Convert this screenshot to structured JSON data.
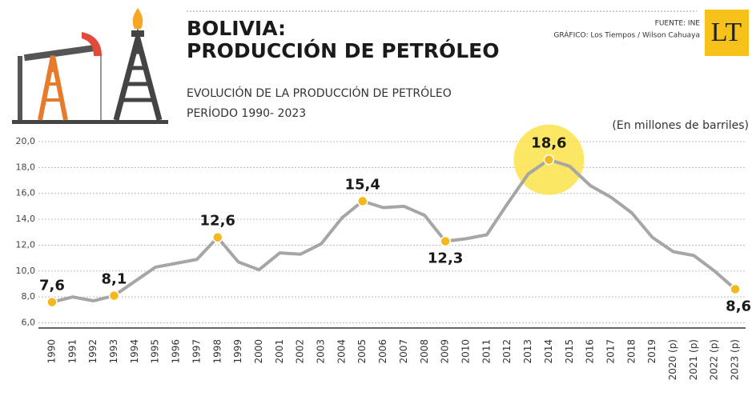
{
  "chart_data": {
    "type": "line",
    "title": [
      "BOLIVIA:",
      "PRODUCCIÓN DE PETRÓLEO"
    ],
    "subtitle": [
      "EVOLUCIÓN DE LA PRODUCCIÓN DE PETRÓLEO",
      "PERÍODO 1990- 2023"
    ],
    "unit": "(En millones de barriles)",
    "source": "FUENTE: INE",
    "credit": "GRÁFICO: Los Tiempos / Wilson Cahuaya",
    "logo": "LT",
    "categories": [
      "1990",
      "1991",
      "1992",
      "1993",
      "1994",
      "1995",
      "1996",
      "1997",
      "1998",
      "1999",
      "2000",
      "2001",
      "2002",
      "2003",
      "2004",
      "2005",
      "2006",
      "2007",
      "2008",
      "2009",
      "2010",
      "2011",
      "2012",
      "2013",
      "2014",
      "2015",
      "2016",
      "2017",
      "2018",
      "2019",
      "2020 (p)",
      "2021 (p)",
      "2022 (p)",
      "2023 (p)"
    ],
    "values": [
      7.6,
      8.0,
      7.7,
      8.1,
      9.2,
      10.3,
      10.6,
      10.9,
      12.6,
      10.7,
      10.1,
      11.4,
      11.3,
      12.1,
      14.1,
      15.4,
      14.9,
      15.0,
      14.3,
      12.3,
      12.5,
      12.8,
      15.2,
      17.5,
      18.6,
      18.1,
      16.6,
      15.7,
      14.5,
      12.6,
      11.5,
      11.2,
      10.0,
      8.6
    ],
    "value_labels": [
      "7,6",
      null,
      null,
      "8,1",
      null,
      null,
      null,
      null,
      "12,6",
      null,
      null,
      null,
      null,
      null,
      null,
      "15,4",
      null,
      null,
      null,
      "12,3",
      null,
      null,
      null,
      null,
      "18,6",
      null,
      null,
      null,
      null,
      null,
      null,
      null,
      null,
      "8,6"
    ],
    "color": "#a6a6a6",
    "marker_color": "#f2b81c",
    "highlight_color": "#fbe34a",
    "ylim": [
      5.6,
      20
    ],
    "yticks": [
      {
        "value": 6,
        "label": "6,0"
      },
      {
        "value": 8,
        "label": "8,0"
      },
      {
        "value": 10,
        "label": "10,0"
      },
      {
        "value": 12,
        "label": "12,0"
      },
      {
        "value": 14,
        "label": "14,0"
      },
      {
        "value": 16,
        "label": "16,0"
      },
      {
        "value": 18,
        "label": "18,0"
      },
      {
        "value": 20,
        "label": "20,0"
      }
    ],
    "grid": true
  }
}
